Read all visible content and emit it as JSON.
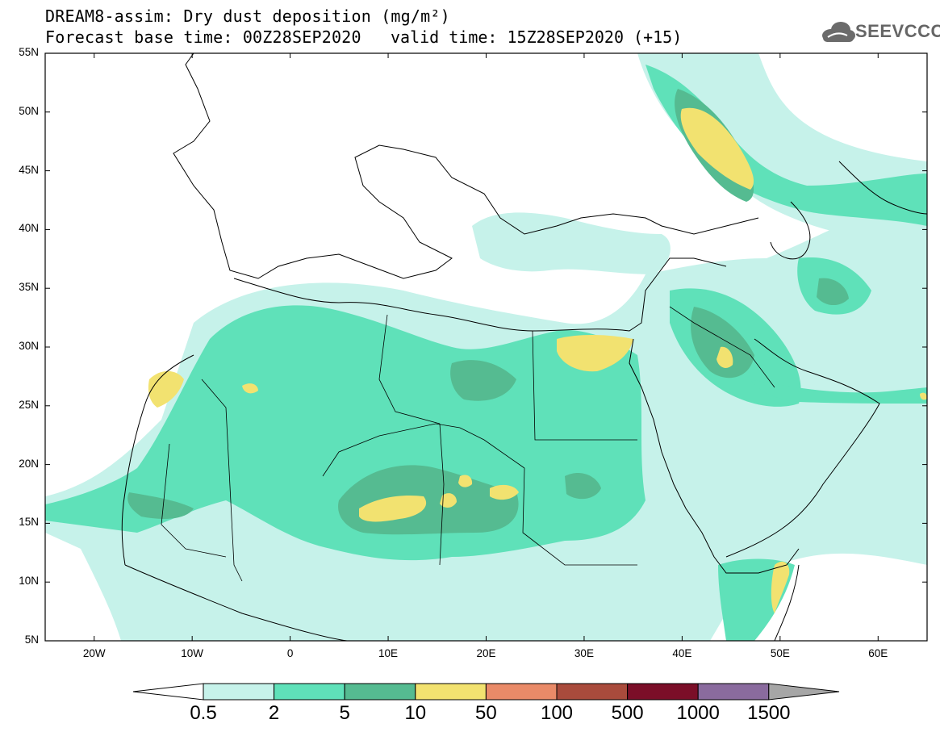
{
  "title": {
    "line1": "DREAM8-assim: Dry dust deposition (mg/m²)",
    "line2": "Forecast base time: 00Z28SEP2020",
    "valid": "valid time: 15Z28SEP2020 (+15)"
  },
  "logo": {
    "text": "SEEVCCC",
    "icon": "cloud-logo-icon"
  },
  "map": {
    "lon_range": [
      -25,
      65
    ],
    "lat_range": [
      5,
      55
    ],
    "lat_ticks": [
      {
        "value": 55,
        "label": "55N"
      },
      {
        "value": 50,
        "label": "50N"
      },
      {
        "value": 45,
        "label": "45N"
      },
      {
        "value": 40,
        "label": "40N"
      },
      {
        "value": 35,
        "label": "35N"
      },
      {
        "value": 30,
        "label": "30N"
      },
      {
        "value": 25,
        "label": "25N"
      },
      {
        "value": 20,
        "label": "20N"
      },
      {
        "value": 15,
        "label": "15N"
      },
      {
        "value": 10,
        "label": "10N"
      },
      {
        "value": 5,
        "label": "5N"
      }
    ],
    "lon_ticks": [
      {
        "value": -20,
        "label": "20W"
      },
      {
        "value": -10,
        "label": "10W"
      },
      {
        "value": 0,
        "label": "0"
      },
      {
        "value": 10,
        "label": "10E"
      },
      {
        "value": 20,
        "label": "20E"
      },
      {
        "value": 30,
        "label": "30E"
      },
      {
        "value": 40,
        "label": "40E"
      },
      {
        "value": 50,
        "label": "50E"
      },
      {
        "value": 60,
        "label": "60E"
      }
    ]
  },
  "colorbar": {
    "colors": [
      "#c6f2ea",
      "#5fe1b9",
      "#55bb91",
      "#f2e270",
      "#e98a68",
      "#a94b3c",
      "#7b0e28",
      "#8a6b9e"
    ],
    "under_color": "#ffffff",
    "over_color": "#a6a6a6",
    "labels": [
      "0.5",
      "2",
      "5",
      "10",
      "50",
      "100",
      "500",
      "1000",
      "1500"
    ]
  }
}
